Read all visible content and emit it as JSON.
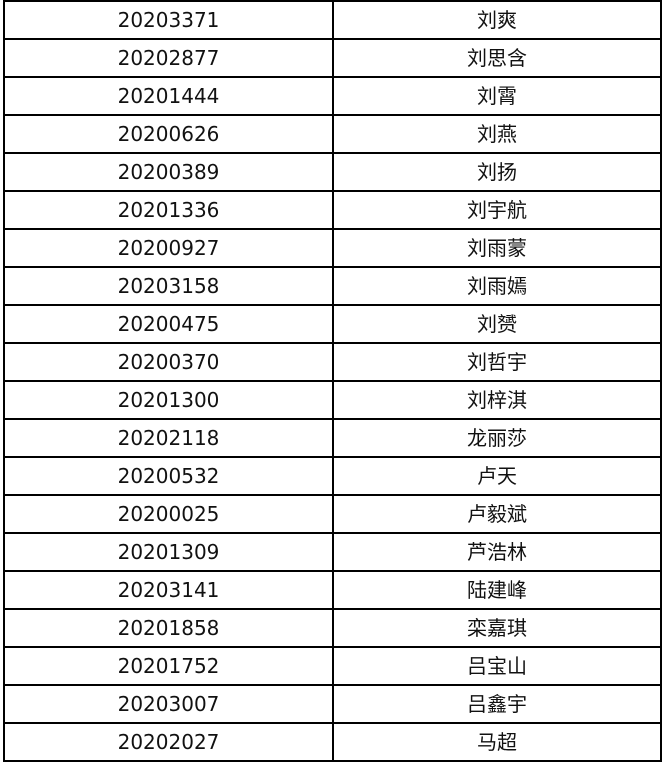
{
  "table": {
    "rows": [
      {
        "id": "20203371",
        "name": "刘爽"
      },
      {
        "id": "20202877",
        "name": "刘思含"
      },
      {
        "id": "20201444",
        "name": "刘霄"
      },
      {
        "id": "20200626",
        "name": "刘燕"
      },
      {
        "id": "20200389",
        "name": "刘扬"
      },
      {
        "id": "20201336",
        "name": "刘宇航"
      },
      {
        "id": "20200927",
        "name": "刘雨蒙"
      },
      {
        "id": "20203158",
        "name": "刘雨嫣"
      },
      {
        "id": "20200475",
        "name": "刘赟"
      },
      {
        "id": "20200370",
        "name": "刘哲宇"
      },
      {
        "id": "20201300",
        "name": "刘梓淇"
      },
      {
        "id": "20202118",
        "name": "龙丽莎"
      },
      {
        "id": "20200532",
        "name": "卢天"
      },
      {
        "id": "20200025",
        "name": "卢毅斌"
      },
      {
        "id": "20201309",
        "name": "芦浩林"
      },
      {
        "id": "20203141",
        "name": "陆建峰"
      },
      {
        "id": "20201858",
        "name": "栾嘉琪"
      },
      {
        "id": "20201752",
        "name": "吕宝山"
      },
      {
        "id": "20203007",
        "name": "吕鑫宇"
      },
      {
        "id": "20202027",
        "name": "马超"
      }
    ]
  }
}
